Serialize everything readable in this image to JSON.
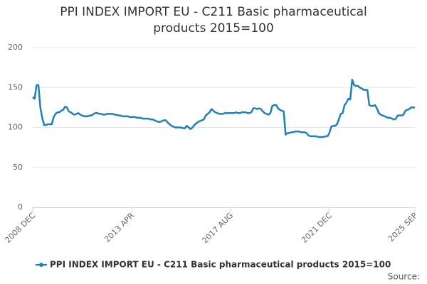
{
  "chart_data": {
    "type": "line",
    "title": "PPI INDEX IMPORT EU - C211 Basic pharmaceutical products 2015=100",
    "source": "Source:",
    "categories": [
      "2008 DEC",
      null,
      null,
      null,
      null,
      null,
      null,
      null,
      null,
      null,
      null,
      null,
      null,
      null,
      null,
      null,
      null,
      null,
      null,
      null,
      null,
      null,
      null,
      null,
      null,
      null,
      null,
      null,
      null,
      null,
      null,
      null,
      null,
      null,
      null,
      null,
      null,
      null,
      null,
      null,
      null,
      null,
      null,
      null,
      null,
      null,
      null,
      null,
      null,
      null,
      null,
      null,
      "2013 APR",
      null,
      null,
      null,
      null,
      null,
      null,
      null,
      null,
      null,
      null,
      null,
      null,
      null,
      null,
      null,
      null,
      null,
      null,
      null,
      null,
      null,
      null,
      null,
      null,
      null,
      null,
      null,
      null,
      null,
      null,
      null,
      null,
      null,
      null,
      null,
      null,
      null,
      null,
      null,
      null,
      null,
      null,
      null,
      null,
      null,
      null,
      null,
      null,
      null,
      null,
      null,
      "2017 AUG",
      null,
      null,
      null,
      null,
      null,
      null,
      null,
      null,
      null,
      null,
      null,
      null,
      null,
      null,
      null,
      null,
      null,
      null,
      null,
      null,
      null,
      null,
      null,
      null,
      null,
      null,
      null,
      null,
      null,
      null,
      null,
      null,
      null,
      null,
      null,
      null,
      null,
      null,
      null,
      null,
      null,
      null,
      null,
      null,
      null,
      null,
      null,
      null,
      null,
      null,
      null,
      "2021 DEC",
      null,
      null,
      null,
      null,
      null,
      null,
      null,
      null,
      null,
      null,
      null,
      null,
      null,
      null,
      null,
      null,
      null,
      null,
      null,
      null,
      null,
      null,
      null,
      null,
      null,
      null,
      null,
      null,
      null,
      null,
      null,
      null,
      null,
      null,
      null,
      null,
      null,
      null,
      null,
      null,
      null,
      null,
      null,
      null,
      "2025 SEP"
    ],
    "series": [
      {
        "name": "PPI INDEX IMPORT EU - C211 Basic pharmaceutical products 2015=100",
        "color": "#1f80b8",
        "values": [
          138,
          136,
          153,
          153,
          125,
          112,
          103,
          103,
          104,
          104,
          104,
          113,
          117,
          119,
          119,
          121,
          122,
          126,
          125,
          120,
          119,
          117,
          116,
          117,
          118,
          116,
          115,
          114,
          114,
          114,
          115,
          115,
          117,
          118,
          118,
          117,
          117,
          116,
          116,
          117,
          117,
          117,
          117,
          116,
          116,
          115,
          115,
          114,
          114,
          114,
          114,
          113,
          113,
          113,
          113,
          112,
          112,
          112,
          111,
          111,
          111,
          111,
          110,
          110,
          109,
          108,
          107,
          107,
          108,
          109,
          109,
          106,
          104,
          102,
          101,
          100,
          100,
          100,
          100,
          99,
          99,
          102,
          100,
          98,
          100,
          103,
          105,
          107,
          108,
          109,
          110,
          115,
          117,
          119,
          123,
          121,
          119,
          118,
          117,
          117,
          117,
          118,
          118,
          118,
          118,
          118,
          118,
          119,
          118,
          118,
          119,
          119,
          119,
          118,
          118,
          119,
          124,
          124,
          123,
          124,
          123,
          120,
          118,
          117,
          116,
          118,
          127,
          128,
          128,
          124,
          122,
          121,
          120,
          91,
          93,
          93,
          94,
          94,
          95,
          95,
          95,
          94,
          94,
          94,
          93,
          90,
          89,
          89,
          89,
          89,
          88,
          88,
          88,
          88,
          89,
          89,
          93,
          101,
          102,
          102,
          104,
          110,
          117,
          118,
          128,
          131,
          136,
          135,
          160,
          153,
          152,
          152,
          150,
          149,
          147,
          147,
          147,
          128,
          127,
          127,
          128,
          124,
          118,
          116,
          115,
          114,
          113,
          112,
          112,
          111,
          110,
          111,
          115,
          115,
          115,
          116,
          121,
          122,
          123,
          125,
          125,
          125
        ]
      }
    ],
    "ylim": [
      0,
      200
    ],
    "yticks": [
      0,
      50,
      100,
      150,
      200
    ],
    "grid": true
  }
}
